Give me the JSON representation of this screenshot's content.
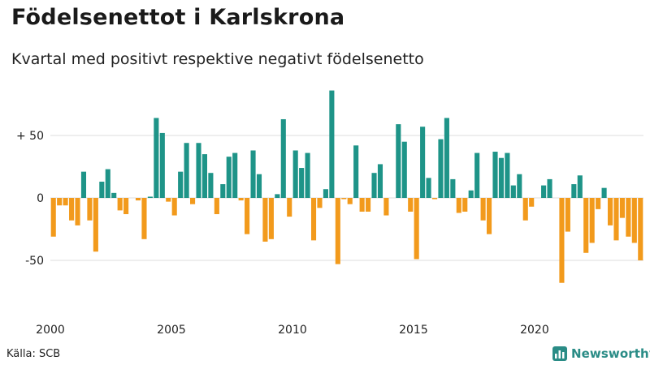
{
  "header": {
    "title": "Födelsenettot i Karlskrona",
    "subtitle": "Kvartal med positivt respektive negativt födelsenetto"
  },
  "footer": {
    "source": "Källa: SCB",
    "brand": "Newsworthy",
    "brand_icon": "bar-chart-logo-icon"
  },
  "colors": {
    "positive": "#1e9488",
    "negative": "#f29a1c",
    "grid": "#dcdcdc",
    "brand": "#2a8c86"
  },
  "chart_data": {
    "type": "bar",
    "x_start_year": 2000,
    "periods_per_year": 4,
    "values": [
      -31,
      -6,
      -6,
      -18,
      -22,
      21,
      -18,
      -43,
      13,
      23,
      4,
      -10,
      -13,
      0,
      -2,
      -33,
      1,
      64,
      52,
      -3,
      -14,
      21,
      44,
      -5,
      44,
      35,
      20,
      -13,
      11,
      33,
      36,
      -2,
      -29,
      38,
      19,
      -35,
      -33,
      3,
      63,
      -15,
      38,
      24,
      36,
      -34,
      -8,
      7,
      86,
      -53,
      -1,
      -5,
      42,
      -11,
      -11,
      20,
      27,
      -14,
      0,
      59,
      45,
      -11,
      -49,
      57,
      16,
      -1,
      47,
      64,
      15,
      -12,
      -11,
      6,
      36,
      -18,
      -29,
      37,
      32,
      36,
      10,
      19,
      -18,
      -7,
      0,
      10,
      15,
      0,
      -68,
      -27,
      11,
      18,
      -44,
      -36,
      -9,
      8,
      -22,
      -34,
      -16,
      -31,
      -36,
      -50
    ],
    "x_ticks": [
      {
        "label": "2000",
        "year": 2000
      },
      {
        "label": "2005",
        "year": 2005
      },
      {
        "label": "2010",
        "year": 2010
      },
      {
        "label": "2015",
        "year": 2015
      },
      {
        "label": "2020",
        "year": 2020
      }
    ],
    "y_ticks": [
      {
        "label": "+ 50",
        "value": 50
      },
      {
        "label": "0",
        "value": 0
      },
      {
        "label": "-50",
        "value": -50
      }
    ],
    "ylim": [
      -80,
      95
    ],
    "grid": true,
    "legend": "none"
  }
}
